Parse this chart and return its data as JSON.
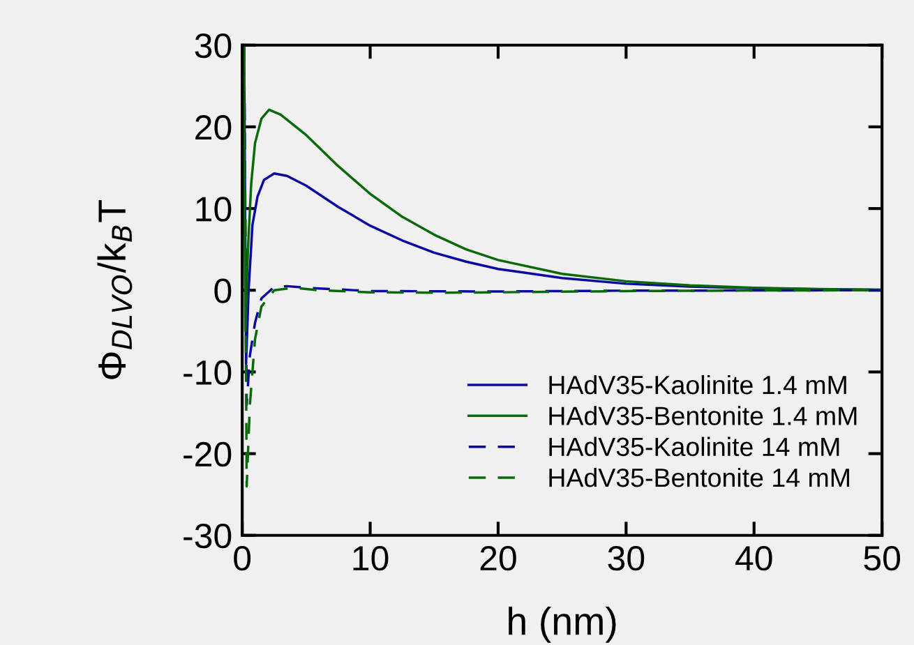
{
  "chart_data": {
    "type": "line",
    "xlabel": "h (nm)",
    "ylabel": "Φ$_{DLVO}$/k$_{B}$T",
    "xlim": [
      0,
      50
    ],
    "ylim": [
      -30,
      30
    ],
    "xticks": [
      0,
      10,
      20,
      30,
      40,
      50
    ],
    "yticks": [
      -30,
      -20,
      -10,
      0,
      10,
      20,
      30
    ],
    "grid": false,
    "legend": "bottom right",
    "marker": "none",
    "series": [
      {
        "name": "HAdV35-Kaolinite 1.4 mM",
        "color": "#0a0aa0",
        "line_style": "solid",
        "x": [
          0.15,
          0.3,
          0.5,
          0.8,
          1.2,
          1.7,
          2.5,
          3.5,
          5,
          7.5,
          10,
          12.5,
          15,
          17.5,
          20,
          25,
          30,
          35,
          40,
          45,
          50
        ],
        "values": [
          30,
          -9,
          0,
          8,
          11.5,
          13.5,
          14.3,
          14,
          12.8,
          10.2,
          7.9,
          6.1,
          4.6,
          3.5,
          2.6,
          1.5,
          0.8,
          0.45,
          0.25,
          0.12,
          0.05
        ]
      },
      {
        "name": "HAdV35-Bentonite 1.4 mM",
        "color": "#0a6a0a",
        "line_style": "solid",
        "x": [
          0.1,
          0.25,
          0.45,
          0.7,
          1,
          1.5,
          2.1,
          3,
          5,
          7.5,
          10,
          12.5,
          15,
          17.5,
          20,
          25,
          30,
          35,
          40,
          45,
          50
        ],
        "values": [
          30,
          -5,
          5,
          13,
          18,
          21,
          22.1,
          21.5,
          19,
          15.2,
          11.8,
          9,
          6.8,
          5,
          3.7,
          2,
          1.1,
          0.6,
          0.3,
          0.15,
          0.07
        ]
      },
      {
        "name": "HAdV35-Kaolinite 14 mM",
        "color": "#0a0aa0",
        "line_style": "dashed",
        "x": [
          0.15,
          0.35,
          0.6,
          1,
          1.5,
          2.5,
          3.5,
          5,
          10,
          20,
          30,
          50
        ],
        "values": [
          30,
          -14,
          -8,
          -4,
          -1,
          0.4,
          0.5,
          0.3,
          -0.1,
          -0.15,
          -0.05,
          0
        ]
      },
      {
        "name": "HAdV35-Bentonite 14 mM",
        "color": "#0a6a0a",
        "line_style": "dashed",
        "x": [
          0.15,
          0.35,
          0.6,
          1,
          1.5,
          2.5,
          4,
          6,
          10,
          15,
          20,
          30,
          40,
          50
        ],
        "values": [
          30,
          -24,
          -14,
          -6,
          -2,
          0,
          0.3,
          0,
          -0.25,
          -0.3,
          -0.25,
          -0.1,
          -0.03,
          0
        ]
      }
    ]
  }
}
